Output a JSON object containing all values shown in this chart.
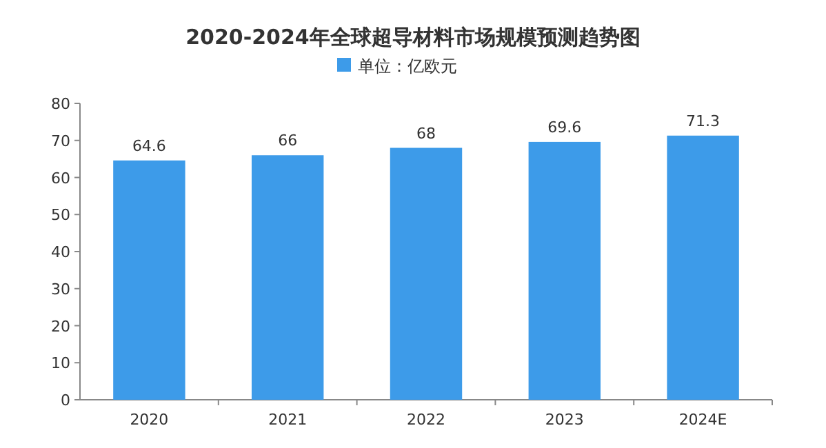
{
  "chart_data": {
    "type": "bar",
    "title": "2020-2024年全球超导材料市场规模预测趋势图",
    "categories": [
      "2020",
      "2021",
      "2022",
      "2023",
      "2024E"
    ],
    "series": [
      {
        "name": "单位：亿欧元",
        "color": "#3d9be9",
        "values": [
          64.6,
          66,
          68,
          69.6,
          71.3
        ]
      }
    ],
    "ylim": [
      0,
      80
    ],
    "yticks": [
      0,
      10,
      20,
      30,
      40,
      50,
      60,
      70,
      80
    ],
    "data_labels": true,
    "legend": "top",
    "grid": false
  }
}
